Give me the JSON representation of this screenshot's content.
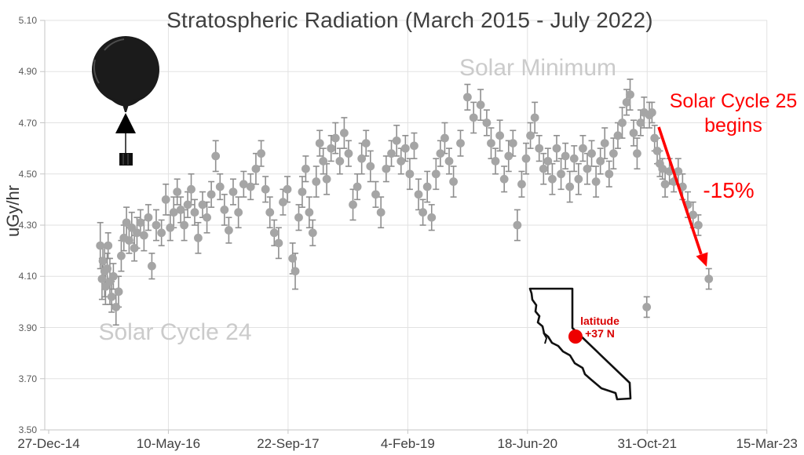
{
  "title": "Stratospheric Radiation (March 2015 - July 2022)",
  "y_axis": {
    "label": "uGy/hr"
  },
  "annotations": {
    "solar_minimum": "Solar Minimum",
    "solar_cycle_24": "Solar Cycle 24",
    "solar_cycle_25_line1": "Solar Cycle 25",
    "solar_cycle_25_line2": "begins",
    "drop_label": "-15%",
    "latitude_line1": "latitude",
    "latitude_line2": "+37 N"
  },
  "colors": {
    "accent_red": "#ff0000",
    "marker_gray": "#a5a5a5",
    "errorbar_gray": "#8f8f8f",
    "watermark_gray": "#cbcbcb",
    "gridline": "#e2e2e2",
    "axis_line": "#c6c6c6",
    "title_gray": "#3f3f3f"
  },
  "chart_data": {
    "type": "scatter",
    "title": "Stratospheric Radiation (March 2015 - July 2022)",
    "xlabel": "",
    "ylabel": "uGy/hr",
    "ylim": [
      3.5,
      5.1
    ],
    "grid": true,
    "legend": "none",
    "y_tick_labels": [
      "3.50",
      "3.70",
      "3.90",
      "4.10",
      "4.30",
      "4.50",
      "4.70",
      "4.90",
      "5.10"
    ],
    "y_tick_values": [
      3.5,
      3.7,
      3.9,
      4.1,
      4.3,
      4.5,
      4.7,
      4.9,
      5.1
    ],
    "x_ticks": [
      {
        "label": "27-Dec-14",
        "t": 2014.99
      },
      {
        "label": "10-May-16",
        "t": 2016.359
      },
      {
        "label": "22-Sep-17",
        "t": 2017.728
      },
      {
        "label": "4-Feb-19",
        "t": 2019.097
      },
      {
        "label": "18-Jun-20",
        "t": 2020.466
      },
      {
        "label": "31-Oct-21",
        "t": 2021.835
      },
      {
        "label": "15-Mar-23",
        "t": 2023.204
      }
    ],
    "x_range_years": [
      2014.99,
      2023.204
    ],
    "series_note": "weekly balloon dose-rate measurements with error bars (uGy/hr), decimal-year x",
    "points": [
      [
        2015.58,
        4.22,
        0.09
      ],
      [
        2015.6,
        4.09,
        0.08
      ],
      [
        2015.61,
        4.16,
        0.06
      ],
      [
        2015.63,
        4.12,
        0.1
      ],
      [
        2015.64,
        4.06,
        0.07
      ],
      [
        2015.66,
        4.13,
        0.06
      ],
      [
        2015.67,
        4.22,
        0.05
      ],
      [
        2015.69,
        4.08,
        0.09
      ],
      [
        2015.71,
        4.02,
        0.06
      ],
      [
        2015.73,
        4.1,
        0.05
      ],
      [
        2015.76,
        3.98,
        0.07
      ],
      [
        2015.79,
        4.04,
        0.06
      ],
      [
        2015.82,
        4.18,
        0.06
      ],
      [
        2015.85,
        4.25,
        0.05
      ],
      [
        2015.88,
        4.31,
        0.06
      ],
      [
        2015.91,
        4.24,
        0.05
      ],
      [
        2015.94,
        4.29,
        0.06
      ],
      [
        2015.97,
        4.21,
        0.05
      ],
      [
        2016.0,
        4.27,
        0.06
      ],
      [
        2016.04,
        4.31,
        0.05
      ],
      [
        2016.08,
        4.26,
        0.06
      ],
      [
        2016.13,
        4.33,
        0.05
      ],
      [
        2016.17,
        4.14,
        0.05
      ],
      [
        2016.22,
        4.3,
        0.06
      ],
      [
        2016.28,
        4.27,
        0.05
      ],
      [
        2016.33,
        4.4,
        0.06
      ],
      [
        2016.38,
        4.29,
        0.05
      ],
      [
        2016.42,
        4.35,
        0.06
      ],
      [
        2016.46,
        4.43,
        0.05
      ],
      [
        2016.5,
        4.36,
        0.05
      ],
      [
        2016.54,
        4.3,
        0.06
      ],
      [
        2016.58,
        4.38,
        0.05
      ],
      [
        2016.62,
        4.44,
        0.06
      ],
      [
        2016.66,
        4.35,
        0.05
      ],
      [
        2016.7,
        4.25,
        0.06
      ],
      [
        2016.75,
        4.38,
        0.05
      ],
      [
        2016.8,
        4.33,
        0.06
      ],
      [
        2016.85,
        4.42,
        0.05
      ],
      [
        2016.9,
        4.57,
        0.06
      ],
      [
        2016.95,
        4.45,
        0.05
      ],
      [
        2017.0,
        4.36,
        0.06
      ],
      [
        2017.05,
        4.28,
        0.05
      ],
      [
        2017.1,
        4.43,
        0.05
      ],
      [
        2017.16,
        4.35,
        0.06
      ],
      [
        2017.22,
        4.46,
        0.05
      ],
      [
        2017.3,
        4.45,
        0.05
      ],
      [
        2017.36,
        4.52,
        0.06
      ],
      [
        2017.42,
        4.58,
        0.05
      ],
      [
        2017.47,
        4.44,
        0.05
      ],
      [
        2017.52,
        4.35,
        0.06
      ],
      [
        2017.57,
        4.27,
        0.05
      ],
      [
        2017.62,
        4.23,
        0.06
      ],
      [
        2017.67,
        4.39,
        0.05
      ],
      [
        2017.72,
        4.44,
        0.05
      ],
      [
        2017.78,
        4.17,
        0.06
      ],
      [
        2017.81,
        4.12,
        0.07
      ],
      [
        2017.85,
        4.33,
        0.05
      ],
      [
        2017.89,
        4.43,
        0.06
      ],
      [
        2017.93,
        4.52,
        0.05
      ],
      [
        2017.97,
        4.35,
        0.06
      ],
      [
        2018.01,
        4.27,
        0.05
      ],
      [
        2018.05,
        4.47,
        0.06
      ],
      [
        2018.09,
        4.62,
        0.05
      ],
      [
        2018.13,
        4.55,
        0.05
      ],
      [
        2018.17,
        4.48,
        0.06
      ],
      [
        2018.22,
        4.6,
        0.05
      ],
      [
        2018.27,
        4.64,
        0.06
      ],
      [
        2018.32,
        4.55,
        0.05
      ],
      [
        2018.37,
        4.66,
        0.06
      ],
      [
        2018.42,
        4.58,
        0.05
      ],
      [
        2018.47,
        4.38,
        0.06
      ],
      [
        2018.52,
        4.45,
        0.05
      ],
      [
        2018.57,
        4.56,
        0.06
      ],
      [
        2018.62,
        4.62,
        0.05
      ],
      [
        2018.67,
        4.53,
        0.06
      ],
      [
        2018.73,
        4.42,
        0.05
      ],
      [
        2018.79,
        4.35,
        0.06
      ],
      [
        2018.85,
        4.52,
        0.05
      ],
      [
        2018.91,
        4.58,
        0.05
      ],
      [
        2018.97,
        4.63,
        0.06
      ],
      [
        2019.02,
        4.55,
        0.05
      ],
      [
        2019.07,
        4.6,
        0.05
      ],
      [
        2019.12,
        4.5,
        0.06
      ],
      [
        2019.17,
        4.61,
        0.05
      ],
      [
        2019.22,
        4.42,
        0.06
      ],
      [
        2019.27,
        4.35,
        0.05
      ],
      [
        2019.32,
        4.45,
        0.06
      ],
      [
        2019.37,
        4.33,
        0.05
      ],
      [
        2019.42,
        4.5,
        0.06
      ],
      [
        2019.47,
        4.58,
        0.05
      ],
      [
        2019.52,
        4.64,
        0.06
      ],
      [
        2019.57,
        4.55,
        0.05
      ],
      [
        2019.62,
        4.47,
        0.06
      ],
      [
        2019.7,
        4.62,
        0.05
      ],
      [
        2019.78,
        4.8,
        0.05
      ],
      [
        2019.85,
        4.72,
        0.06
      ],
      [
        2019.93,
        4.77,
        0.06
      ],
      [
        2020.0,
        4.7,
        0.05
      ],
      [
        2020.05,
        4.62,
        0.06
      ],
      [
        2020.1,
        4.55,
        0.05
      ],
      [
        2020.15,
        4.65,
        0.06
      ],
      [
        2020.2,
        4.48,
        0.05
      ],
      [
        2020.25,
        4.57,
        0.06
      ],
      [
        2020.3,
        4.62,
        0.05
      ],
      [
        2020.35,
        4.3,
        0.06
      ],
      [
        2020.4,
        4.46,
        0.05
      ],
      [
        2020.45,
        4.56,
        0.06
      ],
      [
        2020.5,
        4.65,
        0.05
      ],
      [
        2020.55,
        4.72,
        0.06
      ],
      [
        2020.6,
        4.6,
        0.05
      ],
      [
        2020.65,
        4.52,
        0.06
      ],
      [
        2020.7,
        4.55,
        0.05
      ],
      [
        2020.75,
        4.48,
        0.06
      ],
      [
        2020.8,
        4.6,
        0.05
      ],
      [
        2020.85,
        4.5,
        0.06
      ],
      [
        2020.9,
        4.57,
        0.05
      ],
      [
        2020.95,
        4.45,
        0.06
      ],
      [
        2021.0,
        4.56,
        0.05
      ],
      [
        2021.05,
        4.48,
        0.06
      ],
      [
        2021.1,
        4.6,
        0.05
      ],
      [
        2021.15,
        4.52,
        0.06
      ],
      [
        2021.2,
        4.58,
        0.05
      ],
      [
        2021.25,
        4.47,
        0.06
      ],
      [
        2021.3,
        4.55,
        0.05
      ],
      [
        2021.35,
        4.62,
        0.06
      ],
      [
        2021.4,
        4.5,
        0.05
      ],
      [
        2021.45,
        4.58,
        0.06
      ],
      [
        2021.5,
        4.65,
        0.05
      ],
      [
        2021.55,
        4.7,
        0.06
      ],
      [
        2021.6,
        4.78,
        0.05
      ],
      [
        2021.64,
        4.81,
        0.06
      ],
      [
        2021.68,
        4.66,
        0.05
      ],
      [
        2021.72,
        4.58,
        0.06
      ],
      [
        2021.76,
        4.7,
        0.05
      ],
      [
        2021.8,
        4.74,
        0.06
      ],
      [
        2021.83,
        3.98,
        0.04
      ],
      [
        2021.86,
        4.73,
        0.05
      ],
      [
        2021.89,
        4.74,
        0.04
      ],
      [
        2021.92,
        4.64,
        0.05
      ],
      [
        2021.95,
        4.59,
        0.05
      ],
      [
        2021.98,
        4.54,
        0.05
      ],
      [
        2022.01,
        4.52,
        0.04
      ],
      [
        2022.04,
        4.46,
        0.05
      ],
      [
        2022.09,
        4.51,
        0.05
      ],
      [
        2022.14,
        4.47,
        0.04
      ],
      [
        2022.19,
        4.51,
        0.05
      ],
      [
        2022.24,
        4.45,
        0.05
      ],
      [
        2022.3,
        4.38,
        0.05
      ],
      [
        2022.36,
        4.34,
        0.05
      ],
      [
        2022.42,
        4.3,
        0.04
      ],
      [
        2022.54,
        4.09,
        0.04
      ]
    ],
    "trend_arrow": {
      "from_year": 2021.86,
      "from_value": 4.69,
      "to_year": 2022.49,
      "to_value": 4.18,
      "note": "-15% decline as Solar Cycle 25 begins"
    }
  }
}
